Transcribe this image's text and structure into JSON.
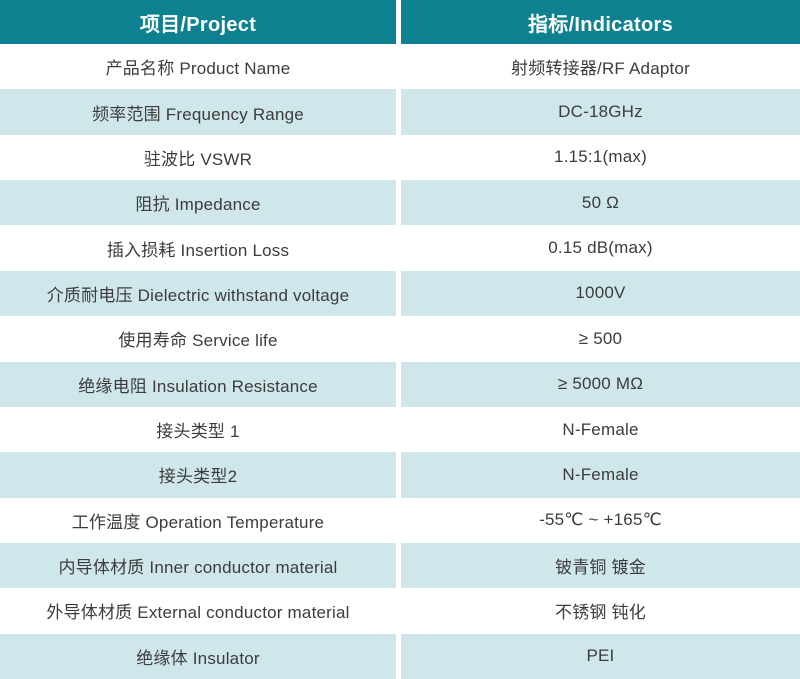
{
  "table": {
    "title": "RF Adaptor specification table",
    "colors": {
      "header_bg": "#0d818f",
      "header_text": "#ffffff",
      "row_bg": "#ffffff",
      "row_alt_bg": "#cfe6ea",
      "body_text": "#3c3c3c",
      "gutter": "#ffffff"
    },
    "header": {
      "project": "项目/Project",
      "indicators": "指标/Indicators"
    },
    "rows": [
      {
        "label": "产品名称 Product Name",
        "value": "射频转接器/RF Adaptor"
      },
      {
        "label": "频率范围 Frequency Range",
        "value": "DC-18GHz"
      },
      {
        "label": "驻波比 VSWR",
        "value": "1.15:1(max)"
      },
      {
        "label": "阻抗 Impedance",
        "value": "50 Ω"
      },
      {
        "label": "插入损耗 Insertion Loss",
        "value": "0.15 dB(max)"
      },
      {
        "label": "介质耐电压 Dielectric withstand voltage",
        "value": "1000V"
      },
      {
        "label": "使用寿命 Service life",
        "value": "≥ 500"
      },
      {
        "label": "绝缘电阻 Insulation Resistance",
        "value": "≥ 5000 MΩ"
      },
      {
        "label": "接头类型 1",
        "value": "N-Female"
      },
      {
        "label": "接头类型2",
        "value": "N-Female"
      },
      {
        "label": "工作温度 Operation Temperature",
        "value": "-55℃ ~ +165℃"
      },
      {
        "label": "内导体材质 Inner conductor material",
        "value": "铍青铜 镀金"
      },
      {
        "label": "外导体材质 External conductor material",
        "value": "不锈钢 钝化"
      },
      {
        "label": "绝缘体 Insulator",
        "value": "PEI"
      }
    ]
  }
}
